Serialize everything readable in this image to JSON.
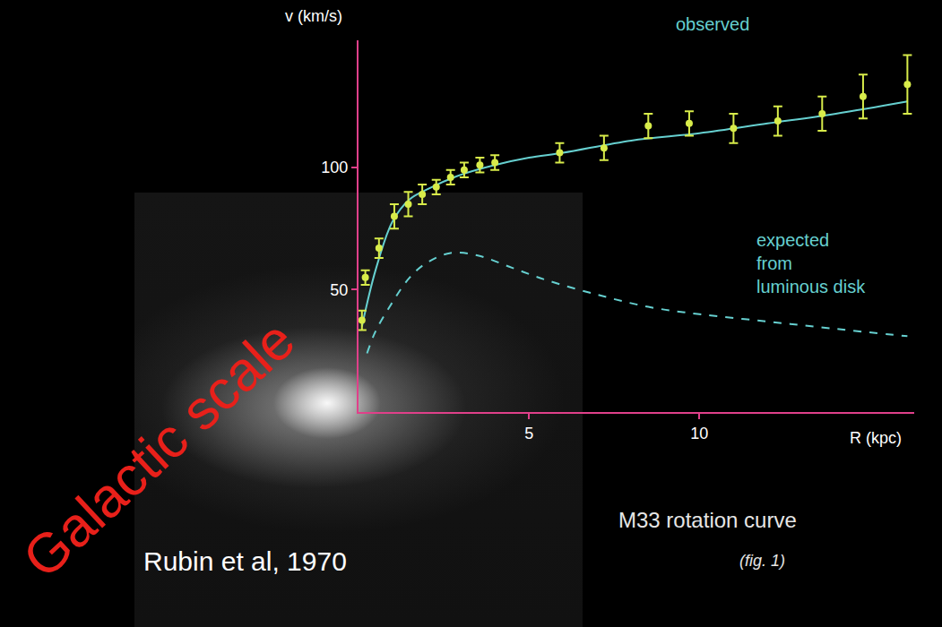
{
  "chart_data": {
    "type": "scatter",
    "x_label": "R (kpc)",
    "y_label": "v (km/s)",
    "xlim": [
      0,
      16.3
    ],
    "ylim": [
      0,
      152
    ],
    "xticks": [
      5,
      10
    ],
    "yticks": [
      50,
      100
    ],
    "grid": false,
    "series": [
      {
        "name": "observed",
        "type": "line",
        "color": "#66d0d0",
        "x": [
          0.1,
          0.5,
          1,
          1.5,
          2,
          3,
          4,
          5,
          6,
          8,
          10,
          12,
          14,
          16.1
        ],
        "values": [
          35,
          58,
          78,
          87,
          91,
          97,
          101,
          104,
          106,
          111,
          114,
          118,
          122,
          127
        ]
      },
      {
        "type": "scatter",
        "color": "#d8ec4a",
        "marker": "circle",
        "x": [
          0.1,
          0.2,
          0.6,
          1.05,
          1.46,
          1.87,
          2.28,
          2.7,
          3.1,
          3.56,
          4.0,
          5.9,
          7.2,
          8.5,
          9.7,
          11.0,
          12.3,
          13.6,
          14.8,
          16.1
        ],
        "values": [
          37.5,
          55,
          67,
          80,
          85,
          89,
          92,
          96,
          99,
          101,
          102,
          106,
          108,
          117,
          118,
          116,
          119,
          122,
          129,
          134
        ],
        "errors": [
          4,
          3,
          4,
          5,
          5,
          4,
          3,
          3,
          3,
          3,
          3,
          4,
          5,
          5,
          5,
          6,
          6,
          7,
          9,
          12
        ]
      },
      {
        "name": "expected\nfrom\nluminous disk",
        "type": "line",
        "line_style": "dashed",
        "color": "#66d0d0",
        "x": [
          0.25,
          0.5,
          1,
          1.5,
          2,
          2.7,
          3.5,
          4.5,
          5.5,
          7,
          8.5,
          10,
          12,
          14,
          16.1
        ],
        "values": [
          24,
          33,
          45,
          55,
          61,
          65,
          64,
          59,
          54,
          48,
          43,
          40,
          37,
          34,
          31
        ]
      }
    ],
    "annotations": [
      "Galactic scale",
      "Rubin et al, 1970",
      "M33 rotation curve",
      "(fig. 1)"
    ]
  }
}
